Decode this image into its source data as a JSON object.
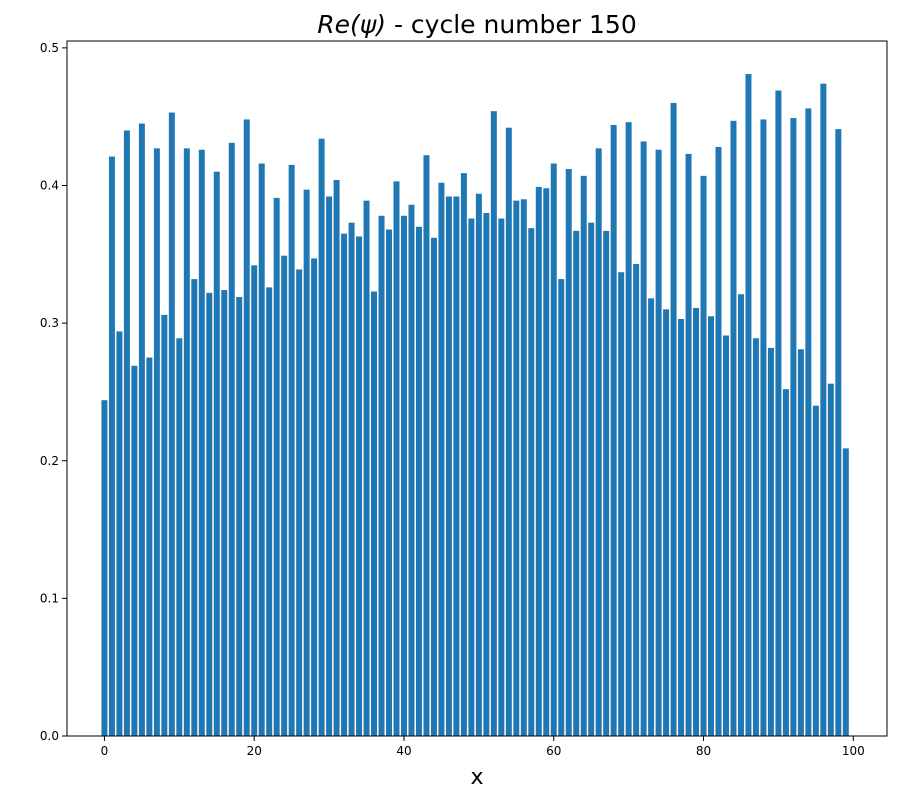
{
  "chart_data": {
    "type": "bar",
    "title": {
      "math": "Re(ψ)",
      "rest": " - cycle number 150"
    },
    "xlabel": "x",
    "ylabel": "",
    "xlim": [
      -5,
      104.5
    ],
    "ylim": [
      0,
      0.505
    ],
    "xticks": [
      0,
      20,
      40,
      60,
      80,
      100
    ],
    "yticks": [
      0.0,
      0.1,
      0.2,
      0.3,
      0.4,
      0.5
    ],
    "ytick_labels": [
      "0.0",
      "0.1",
      "0.2",
      "0.3",
      "0.4",
      "0.5"
    ],
    "bar_width": 0.8,
    "grid": false,
    "bar_color": "#1f77b4",
    "x": [
      0,
      1,
      2,
      3,
      4,
      5,
      6,
      7,
      8,
      9,
      10,
      11,
      12,
      13,
      14,
      15,
      16,
      17,
      18,
      19,
      20,
      21,
      22,
      23,
      24,
      25,
      26,
      27,
      28,
      29,
      30,
      31,
      32,
      33,
      34,
      35,
      36,
      37,
      38,
      39,
      40,
      41,
      42,
      43,
      44,
      45,
      46,
      47,
      48,
      49,
      50,
      51,
      52,
      53,
      54,
      55,
      56,
      57,
      58,
      59,
      60,
      61,
      62,
      63,
      64,
      65,
      66,
      67,
      68,
      69,
      70,
      71,
      72,
      73,
      74,
      75,
      76,
      77,
      78,
      79,
      80,
      81,
      82,
      83,
      84,
      85,
      86,
      87,
      88,
      89,
      90,
      91,
      92,
      93,
      94,
      95,
      96,
      97,
      98,
      99
    ],
    "values": [
      0.244,
      0.421,
      0.294,
      0.44,
      0.269,
      0.445,
      0.275,
      0.427,
      0.306,
      0.453,
      0.289,
      0.427,
      0.332,
      0.426,
      0.322,
      0.41,
      0.324,
      0.431,
      0.319,
      0.448,
      0.342,
      0.416,
      0.326,
      0.391,
      0.349,
      0.415,
      0.339,
      0.397,
      0.347,
      0.434,
      0.392,
      0.404,
      0.365,
      0.373,
      0.363,
      0.389,
      0.323,
      0.378,
      0.368,
      0.403,
      0.378,
      0.386,
      0.37,
      0.422,
      0.362,
      0.402,
      0.392,
      0.392,
      0.409,
      0.376,
      0.394,
      0.38,
      0.454,
      0.376,
      0.442,
      0.389,
      0.39,
      0.369,
      0.399,
      0.398,
      0.416,
      0.332,
      0.412,
      0.367,
      0.407,
      0.373,
      0.427,
      0.367,
      0.444,
      0.337,
      0.446,
      0.343,
      0.432,
      0.318,
      0.426,
      0.31,
      0.46,
      0.303,
      0.423,
      0.311,
      0.407,
      0.305,
      0.428,
      0.291,
      0.447,
      0.321,
      0.481,
      0.289,
      0.448,
      0.282,
      0.469,
      0.252,
      0.449,
      0.281,
      0.456,
      0.24,
      0.474,
      0.256,
      0.441,
      0.209
    ]
  }
}
